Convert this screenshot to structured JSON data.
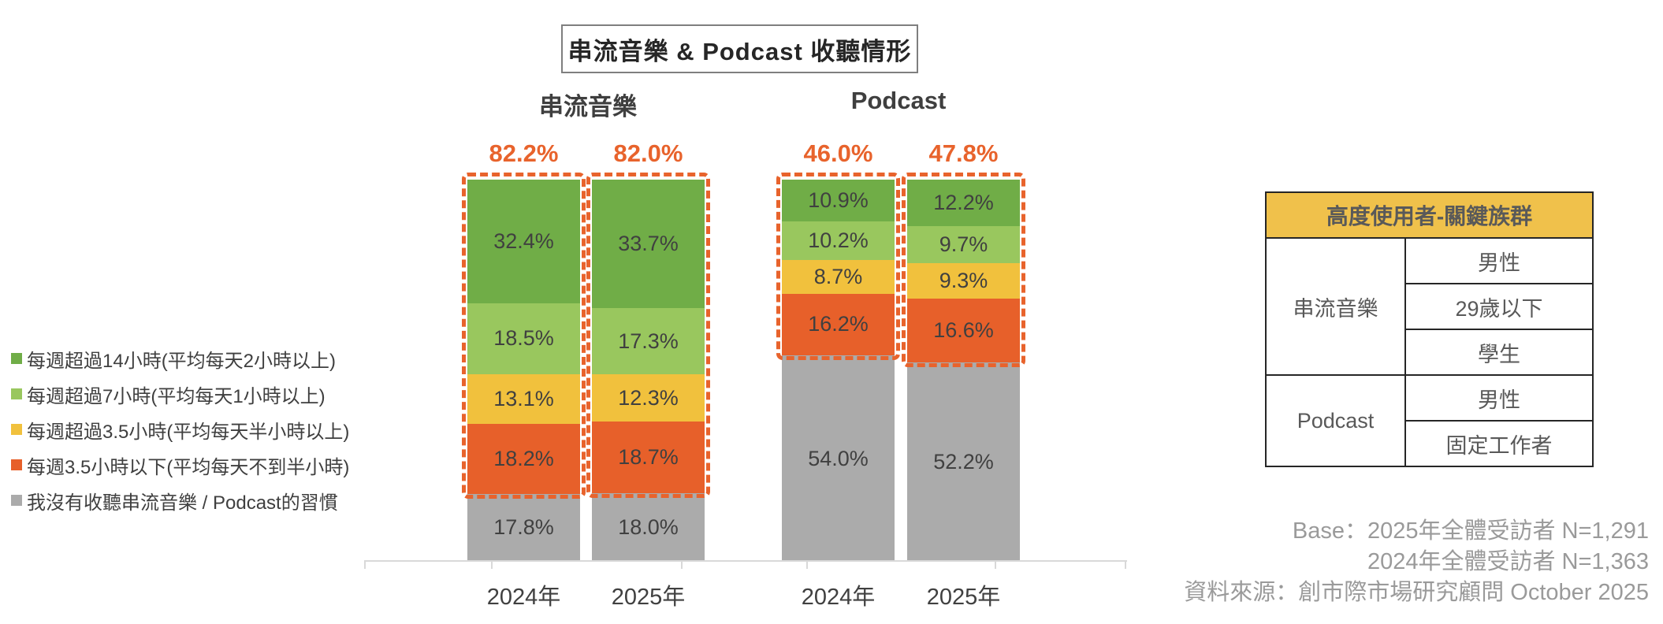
{
  "title": "串流音樂 & Podcast 收聽情形",
  "chart_data": {
    "type": "bar",
    "subtype": "stacked-100-percent",
    "title": "串流音樂 & Podcast 收聽情形",
    "groups": [
      "串流音樂",
      "Podcast"
    ],
    "categories": [
      "2024年",
      "2025年",
      "2024年",
      "2025年"
    ],
    "category_group_index": [
      0,
      0,
      1,
      1
    ],
    "series": [
      {
        "name": "每週超過14小時(平均每天2小時以上)",
        "color": "#70AD47",
        "values": [
          32.4,
          33.7,
          10.9,
          12.2
        ]
      },
      {
        "name": "每週超過7小時(平均每天1小時以上)",
        "color": "#99C75E",
        "values": [
          18.5,
          17.3,
          10.2,
          9.7
        ]
      },
      {
        "name": "每週超過3.5小時(平均每天半小時以上)",
        "color": "#F1C13D",
        "values": [
          13.1,
          12.3,
          8.7,
          9.3
        ]
      },
      {
        "name": "每週3.5小時以下(平均每天不到半小時)",
        "color": "#E7602A",
        "values": [
          18.2,
          18.7,
          16.2,
          16.6
        ]
      },
      {
        "name": "我沒有收聽串流音樂 / Podcast的習慣",
        "color": "#ABABAB",
        "values": [
          17.8,
          18.0,
          54.0,
          52.2
        ]
      }
    ],
    "listener_total_labels": [
      "82.2%",
      "82.0%",
      "46.0%",
      "47.8%"
    ],
    "highlight_series_count": 4,
    "ylim": [
      0,
      100
    ],
    "grid": false,
    "legend_position": "left"
  },
  "legend": [
    {
      "label": "每週超過14小時(平均每天2小時以上)",
      "color": "#70AD47"
    },
    {
      "label": "每週超過7小時(平均每天1小時以上)",
      "color": "#99C75E"
    },
    {
      "label": "每週超過3.5小時(平均每天半小時以上)",
      "color": "#F1C13D"
    },
    {
      "label": "每週3.5小時以下(平均每天不到半小時)",
      "color": "#E7602A"
    },
    {
      "label": "我沒有收聽串流音樂 / Podcast的習慣",
      "color": "#ABABAB"
    }
  ],
  "side_table": {
    "header": "高度使用者-關鍵族群",
    "header_bg": "#F0C14B",
    "rows": [
      {
        "category": "串流音樂",
        "traits": [
          "男性",
          "29歲以下",
          "學生"
        ]
      },
      {
        "category": "Podcast",
        "traits": [
          "男性",
          "固定工作者"
        ]
      }
    ]
  },
  "footnote": {
    "lines": [
      "Base：2025年全體受訪者 N=1,291",
      "2024年全體受訪者 N=1,363",
      "資料來源：創市際市場研究顧問 October 2025"
    ]
  },
  "colors": {
    "accent_orange": "#E8632C",
    "axis_line": "#D9D9D9",
    "segment_label": "#404040",
    "footnote_gray": "#9A9A9A",
    "table_border": "#262626",
    "table_text": "#595959",
    "title_text": "#262626"
  }
}
